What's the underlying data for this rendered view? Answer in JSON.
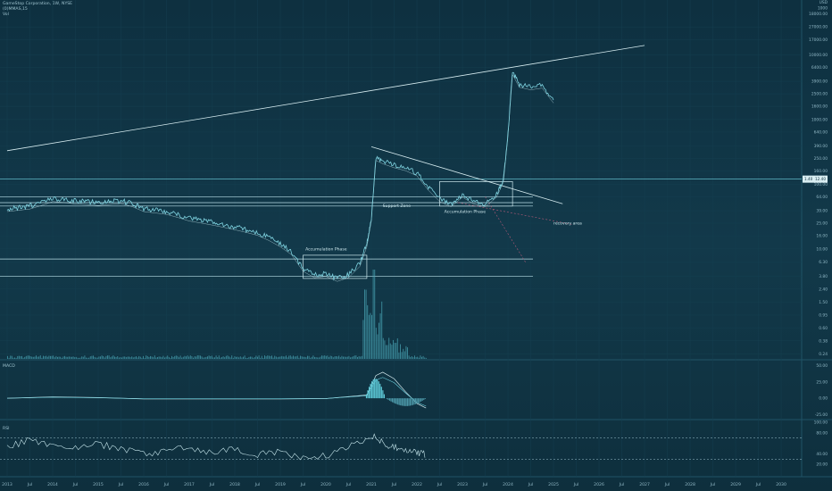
{
  "header": {
    "title": "GameStop Corporation, 1W, NYSE",
    "indicator": "(0)MMAS,15",
    "volume_label": "Vol"
  },
  "price_scale_top": [
    "USD",
    "1000",
    "18000.00"
  ],
  "annotations": {
    "accumulation_1": "Accumulation Phase",
    "accumulation_2": "Accumulation Phase",
    "support_zone": "Support Zone",
    "recovery_area": "recovery area"
  },
  "price_badge": "1.40",
  "price_badge_value": "12.40",
  "panels": {
    "macd_label": "MACD",
    "rsi_label": "RSI"
  },
  "chart_data": [
    {
      "type": "line",
      "title": "GameStop Corporation, 1W, NYSE",
      "scale": "log",
      "y_ticks": [
        "27000.00",
        "17000.00",
        "10000.00",
        "6400.00",
        "3900.00",
        "2500.00",
        "1600.00",
        "1000.00",
        "640.00",
        "390.00",
        "250.00",
        "160.00",
        "100.00",
        "64.00",
        "39.00",
        "25.00",
        "16.00",
        "10.00",
        "6.30",
        "3.80",
        "2.40",
        "1.50",
        "0.95",
        "0.60",
        "0.38",
        "0.24"
      ],
      "x_ticks": [
        "2013",
        "Jul",
        "2014",
        "Jul",
        "2015",
        "Jul",
        "2016",
        "Jul",
        "2017",
        "Jul",
        "2018",
        "Jul",
        "2019",
        "Jul",
        "2020",
        "Jul",
        "2021",
        "Jul",
        "2022",
        "Jul",
        "2023",
        "Jul",
        "2024",
        "Jul",
        "2025",
        "Jul",
        "2026",
        "Jul",
        "2027",
        "Jul",
        "2028",
        "Jul",
        "2029",
        "Jul",
        "2030"
      ],
      "series": [
        {
          "x": [
            2013.0,
            2013.25,
            2013.5,
            2013.75,
            2014.0,
            2014.25,
            2014.5,
            2014.75,
            2015.0,
            2015.25,
            2015.5,
            2015.75,
            2016.0,
            2016.25,
            2016.5,
            2016.75,
            2017.0,
            2017.25,
            2017.5,
            2017.75,
            2018.0,
            2018.25,
            2018.5,
            2018.75,
            2019.0,
            2019.25,
            2019.5,
            2019.75,
            2020.0,
            2020.25,
            2020.5,
            2020.75,
            2020.9,
            2021.0,
            2021.1,
            2021.25,
            2021.5,
            2021.75,
            2022.0,
            2022.25,
            2022.5,
            2022.75,
            2023.0,
            2023.25,
            2023.5,
            2023.75,
            2023.9,
            2024.0,
            2024.1,
            2024.25,
            2024.5,
            2024.75,
            2025.0
          ],
          "values": [
            42,
            44,
            46,
            52,
            60,
            58,
            55,
            54,
            52,
            54,
            56,
            50,
            42,
            40,
            38,
            34,
            30,
            28,
            26,
            24,
            22,
            20,
            18,
            15,
            12,
            9,
            5,
            4,
            4.2,
            3.5,
            4,
            6,
            12,
            30,
            260,
            230,
            200,
            180,
            150,
            90,
            60,
            50,
            70,
            55,
            50,
            70,
            120,
            600,
            5500,
            3500,
            3200,
            3400,
            2000
          ]
        }
      ],
      "trendlines": [
        {
          "from": [
            2013.0,
            330
          ],
          "to": [
            2027.0,
            14000
          ]
        },
        {
          "from": [
            2021.0,
            380
          ],
          "to": [
            2025.2,
            50
          ]
        }
      ],
      "horizontal_levels": [
        64,
        52,
        46,
        7,
        3.8
      ],
      "boxes": [
        {
          "x": [
            2019.5,
            2020.9
          ],
          "y": [
            3.5,
            8.0
          ]
        },
        {
          "x": [
            2022.5,
            2024.1
          ],
          "y": [
            46,
            110
          ]
        }
      ]
    },
    {
      "type": "line",
      "title": "MACD",
      "y_ticks": [
        "50.00",
        "25.00",
        "0.00",
        "-25.00"
      ],
      "ylim": [
        -30,
        55
      ],
      "series": [
        {
          "x": [
            2013,
            2014,
            2015,
            2016,
            2017,
            2018,
            2019,
            2020,
            2020.9,
            2021.1,
            2021.25,
            2021.5,
            2021.75,
            2022.0,
            2022.2
          ],
          "values": [
            0,
            2,
            1,
            -1,
            -1,
            -1,
            -1,
            -0.5,
            5,
            35,
            40,
            30,
            10,
            -8,
            -15
          ]
        }
      ]
    },
    {
      "type": "line",
      "title": "RSI",
      "y_ticks": [
        "100.00",
        "80.00",
        "40.00",
        "20.00"
      ],
      "ylim": [
        0,
        100
      ],
      "levels": [
        70,
        30
      ],
      "series": [
        {
          "x": [
            2013,
            2013.5,
            2014,
            2014.5,
            2015,
            2015.5,
            2016,
            2016.5,
            2017,
            2017.5,
            2018,
            2018.5,
            2019,
            2019.5,
            2020,
            2020.5,
            2021,
            2021.25,
            2021.5,
            2021.75,
            2022.0,
            2022.2
          ],
          "values": [
            55,
            65,
            58,
            52,
            60,
            48,
            40,
            45,
            52,
            42,
            50,
            38,
            44,
            30,
            36,
            55,
            75,
            60,
            52,
            48,
            42,
            38
          ]
        }
      ]
    }
  ]
}
